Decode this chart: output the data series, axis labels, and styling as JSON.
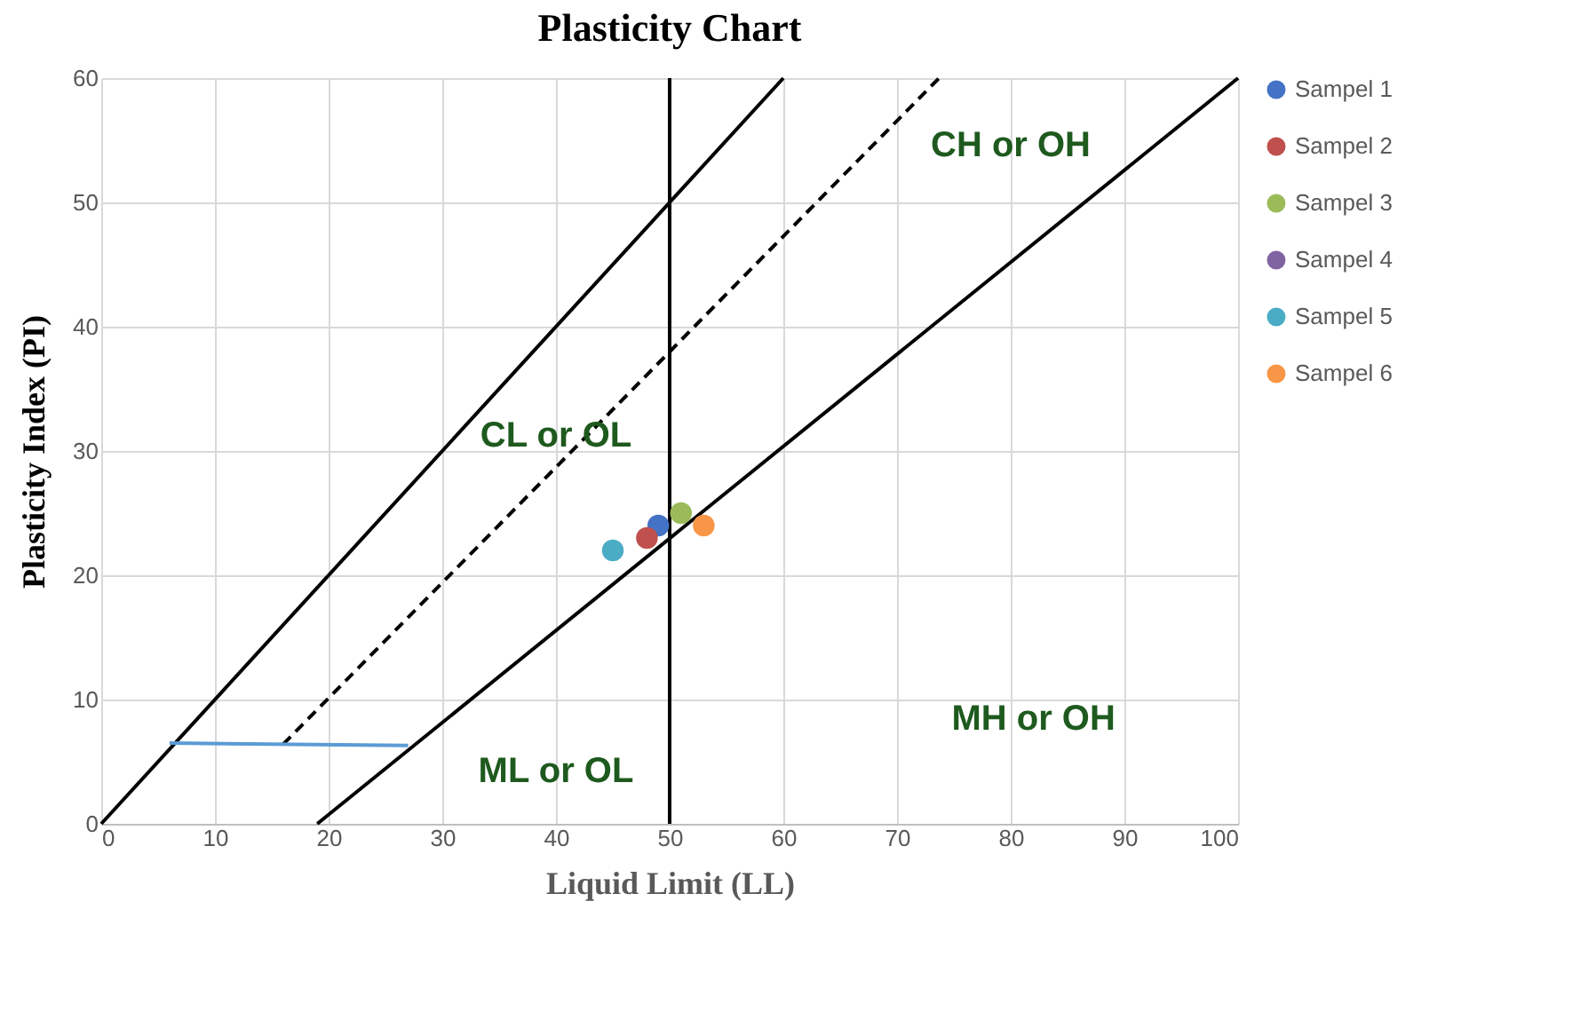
{
  "chart_data": {
    "type": "scatter",
    "title": "Plasticity Chart",
    "xlabel": "Liquid Limit (LL)",
    "ylabel": "Plasticity Index (PI)",
    "xlim": [
      0,
      100
    ],
    "ylim": [
      0,
      60
    ],
    "xticks": [
      0,
      10,
      20,
      30,
      40,
      50,
      60,
      70,
      80,
      90,
      100
    ],
    "yticks": [
      0,
      10,
      20,
      30,
      40,
      50,
      60
    ],
    "grid": true,
    "legend": "right",
    "series": [
      {
        "name": "Sampel 1",
        "color": "#4472c4",
        "marker": "circle",
        "x": [
          49
        ],
        "values": [
          24
        ]
      },
      {
        "name": "Sampel 2",
        "color": "#c0504d",
        "marker": "circle",
        "x": [
          48
        ],
        "values": [
          23
        ]
      },
      {
        "name": "Sampel 3",
        "color": "#9bbb59",
        "marker": "circle",
        "x": [
          51
        ],
        "values": [
          25
        ]
      },
      {
        "name": "Sampel 4",
        "color": "#8064a2",
        "marker": "circle",
        "x": [
          null
        ],
        "values": [
          null
        ]
      },
      {
        "name": "Sampel 5",
        "color": "#4bacc6",
        "marker": "circle",
        "x": [
          45
        ],
        "values": [
          22
        ]
      },
      {
        "name": "Sampel 6",
        "color": "#f79646",
        "marker": "circle",
        "x": [
          53
        ],
        "values": [
          24
        ]
      },
      {
        "type": "line",
        "color": "#000000",
        "line_style": "solid",
        "x": [
          0,
          60
        ],
        "values": [
          0,
          60
        ]
      },
      {
        "type": "line",
        "color": "#000000",
        "line_style": "dashed",
        "x": [
          16,
          73.7
        ],
        "values": [
          6.4,
          60
        ]
      },
      {
        "type": "line",
        "color": "#000000",
        "line_style": "solid",
        "x": [
          19,
          100
        ],
        "values": [
          0,
          60
        ]
      },
      {
        "type": "line",
        "color": "#5b9bd5",
        "line_style": "solid",
        "x": [
          6,
          27
        ],
        "values": [
          6.5,
          6.3
        ]
      }
    ],
    "ref_lines": [
      {
        "axis": "x",
        "value": 50,
        "color": "#000000"
      }
    ],
    "annotations": [
      "CH or OH",
      "CL or OL",
      "ML or OL",
      "MH or OH"
    ]
  }
}
